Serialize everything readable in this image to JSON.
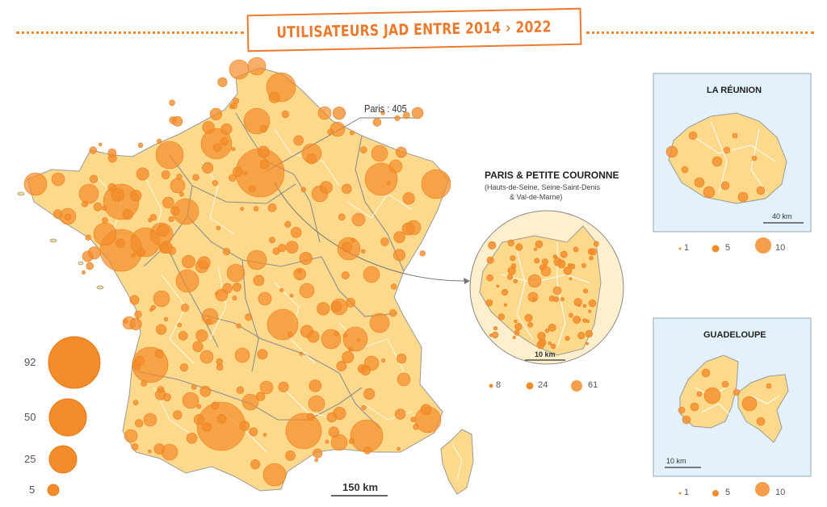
{
  "title": "UTILISATEURS JAD ENTRE 2014 › 2022",
  "paris_label": "Paris : 405",
  "main_scale": "150 km",
  "legend_main": [
    "92",
    "50",
    "25",
    "5"
  ],
  "paris_inset": {
    "title": "PARIS & PETITE COURONNE",
    "subtitle_1": "(Hauts-de-Seine, Seine-Saint-Denis",
    "subtitle_2": "& Val-de-Marne)",
    "scale": "10 km",
    "legend": [
      "8",
      "24",
      "61"
    ]
  },
  "reunion": {
    "title": "LA RÉUNION",
    "scale": "40 km",
    "legend": [
      "1",
      "5",
      "10"
    ]
  },
  "guadeloupe": {
    "title": "GUADELOUPE",
    "scale": "10 km",
    "legend": [
      "1",
      "5",
      "10"
    ]
  },
  "colors": {
    "accent": "#ec7a2c",
    "land": "#fdd98c",
    "bubble": "#f28c2a",
    "sea": "#e2f1fb"
  }
}
